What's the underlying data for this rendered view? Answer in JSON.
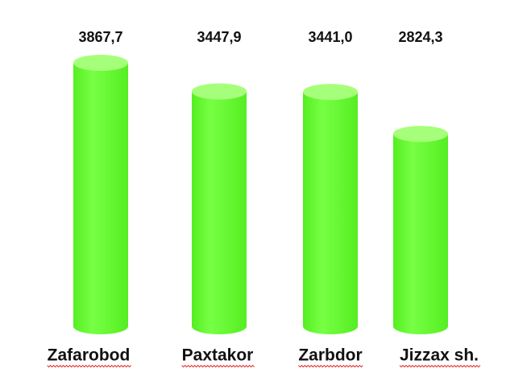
{
  "chart_data": {
    "type": "cylinder-bar",
    "categories": [
      "Zafarobod",
      "Paxtakor",
      "Zarbdor",
      "Jizzax sh."
    ],
    "values": [
      3867.7,
      3447.9,
      3441.0,
      2824.3
    ],
    "value_labels": [
      "3867,7",
      "3447,9",
      "3441,0",
      "2824,3"
    ],
    "color": "#66ff33"
  }
}
